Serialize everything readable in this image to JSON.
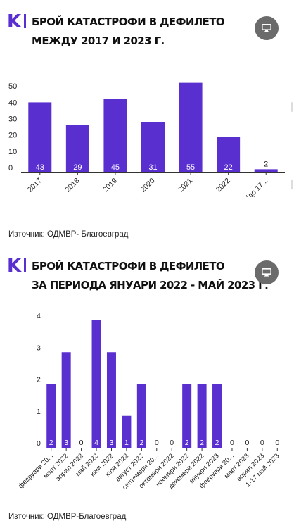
{
  "charts": [
    {
      "title_line1": "Брой катастрофи в дефилето",
      "title_line2": "между 2017 и 2023 г.",
      "source": "Източник: ОДМВР- Благоевград",
      "logo": "K",
      "screen_icon": "monitor-icon"
    },
    {
      "title_line1": "Брой катастрофи в дефилето",
      "title_line2": "за периода януари 2022 - май 2023 г.",
      "source": "Източник: ОДМВР-Благоевград",
      "logo": "K",
      "screen_icon": "monitor-icon"
    }
  ],
  "colors": {
    "bar": "#5a2fd0",
    "brand": "#5a2fd0",
    "axis": "#333333",
    "label": "#ffffff"
  },
  "chart_data": [
    {
      "type": "bar",
      "title": "Брой катастрофи в дефилето между 2017 и 2023 г.",
      "categories": [
        "2017",
        "2018",
        "2019",
        "2020",
        "2021",
        "2022",
        "2023 (до 17..."
      ],
      "values": [
        43,
        29,
        45,
        31,
        55,
        22,
        2
      ],
      "yticks": [
        0,
        10,
        20,
        30,
        40,
        50
      ],
      "ylim": [
        0,
        57
      ],
      "grid": false,
      "legend": "none"
    },
    {
      "type": "bar",
      "title": "Брой катастрофи в дефилето за периода януари 2022 - май 2023 г.",
      "categories": [
        "февруари 20...",
        "март 2022",
        "април 2022",
        "май 2022",
        "юни 2022",
        "юли 2022",
        "август 2022",
        "септември 20...",
        "октомври 2022",
        "ноември 2022",
        "декември 2022",
        "януари 2023",
        "февруари 20...",
        "март 2023",
        "април 2023",
        "1-17 май 2023"
      ],
      "values": [
        2,
        3,
        0,
        4,
        3,
        1,
        2,
        0,
        0,
        2,
        2,
        2,
        0,
        0,
        0,
        0
      ],
      "yticks": [
        0,
        1,
        2,
        3,
        4
      ],
      "ylim": [
        0,
        4
      ],
      "grid": false,
      "legend": "none"
    }
  ]
}
